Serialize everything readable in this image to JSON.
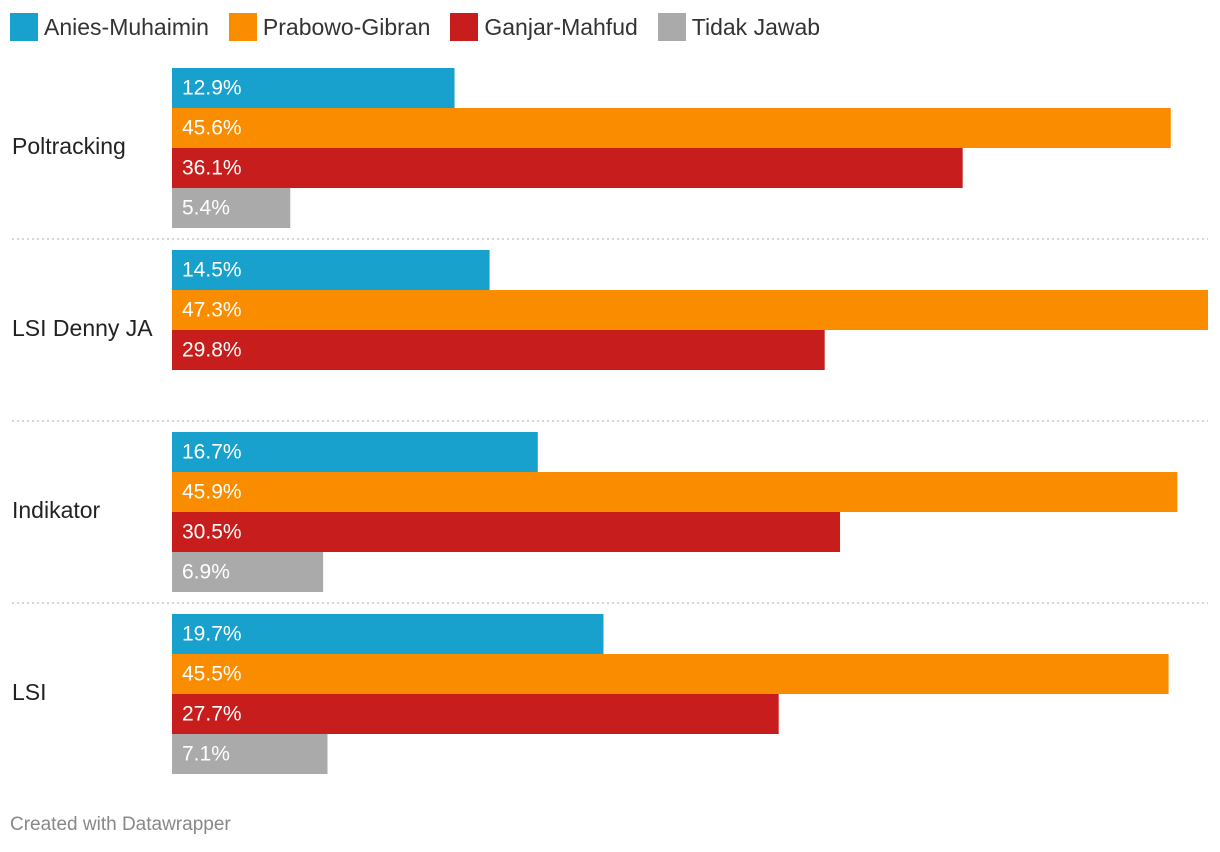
{
  "chart_data": {
    "type": "bar",
    "orientation": "horizontal",
    "categories": [
      "Poltracking",
      "LSI Denny JA",
      "Indikator",
      "LSI"
    ],
    "series": [
      {
        "name": "Anies-Muhaimin",
        "color": "#18a1cd",
        "values": [
          12.9,
          14.5,
          16.7,
          19.7
        ]
      },
      {
        "name": "Prabowo-Gibran",
        "color": "#fa8c00",
        "values": [
          45.6,
          47.3,
          45.9,
          45.5
        ]
      },
      {
        "name": "Ganjar-Mahfud",
        "color": "#c71e1d",
        "values": [
          36.1,
          29.8,
          30.5,
          27.7
        ]
      },
      {
        "name": "Tidak Jawab",
        "color": "#aaaaaa",
        "values": [
          5.4,
          null,
          6.9,
          7.1
        ]
      }
    ],
    "value_suffix": "%",
    "xlim": [
      0,
      47.3
    ],
    "legend_position": "top-left",
    "grid": false
  },
  "footer": {
    "credit": "Created with Datawrapper"
  }
}
